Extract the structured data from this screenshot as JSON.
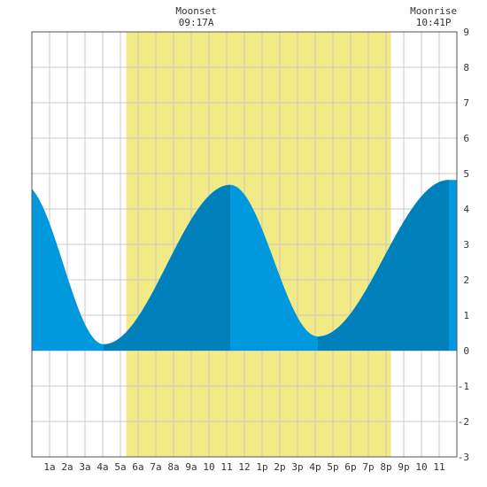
{
  "chart_data": {
    "type": "area",
    "title": "",
    "xlabel": "",
    "ylabel": "",
    "xlim": [
      0,
      24
    ],
    "ylim": [
      -3,
      9
    ],
    "grid": true,
    "x_tick_labels": [
      "1a",
      "2a",
      "3a",
      "4a",
      "5a",
      "6a",
      "7a",
      "8a",
      "9a",
      "10",
      "11",
      "12",
      "1p",
      "2p",
      "3p",
      "4p",
      "5p",
      "6p",
      "7p",
      "8p",
      "9p",
      "10",
      "11"
    ],
    "y_tick_labels": [
      "-3",
      "-2",
      "-1",
      "0",
      "1",
      "2",
      "3",
      "4",
      "5",
      "6",
      "7",
      "8",
      "9"
    ],
    "daylight": {
      "start_hour": 5.33,
      "end_hour": 20.28
    },
    "moon_events": [
      {
        "label": "Moonset",
        "time": "09:17A",
        "hour": 9.28
      },
      {
        "label": "Moonrise",
        "time": "10:41P",
        "hour": 22.68
      }
    ],
    "tide_extremes": [
      {
        "type": "high",
        "hour": -0.5,
        "value": 4.7
      },
      {
        "type": "low",
        "hour": 4.05,
        "value": 0.18
      },
      {
        "type": "high",
        "hour": 11.2,
        "value": 4.68
      },
      {
        "type": "low",
        "hour": 16.15,
        "value": 0.4
      },
      {
        "type": "high",
        "hour": 23.55,
        "value": 4.82
      }
    ],
    "rising_segments": [
      [
        4.05,
        11.2
      ],
      [
        16.15,
        23.55
      ]
    ],
    "colors": {
      "daylight": "#f2ea84",
      "tide_falling": "#0099dd",
      "tide_rising": "#0080bb",
      "grid": "#c8c8c8",
      "border": "#555555"
    }
  }
}
